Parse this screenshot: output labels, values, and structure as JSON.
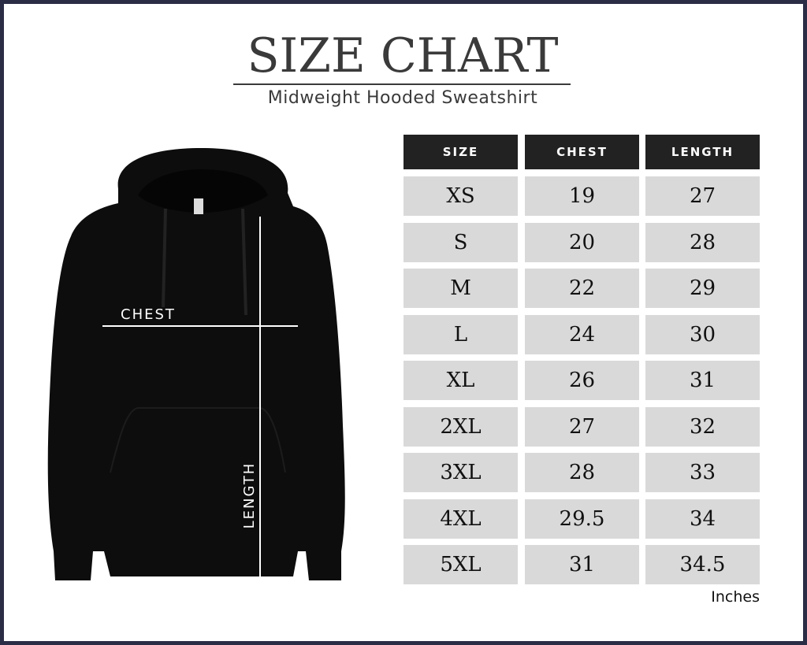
{
  "title": "SIZE CHART",
  "subtitle": "Midweight Hooded Sweatshirt",
  "table": {
    "headers": [
      "SIZE",
      "CHEST",
      "LENGTH"
    ],
    "rows": [
      [
        "XS",
        "19",
        "27"
      ],
      [
        "S",
        "20",
        "28"
      ],
      [
        "M",
        "22",
        "29"
      ],
      [
        "L",
        "24",
        "30"
      ],
      [
        "XL",
        "26",
        "31"
      ],
      [
        "2XL",
        "27",
        "32"
      ],
      [
        "3XL",
        "28",
        "33"
      ],
      [
        "4XL",
        "29.5",
        "34"
      ],
      [
        "5XL",
        "31",
        "34.5"
      ]
    ]
  },
  "unit": "Inches",
  "diagram": {
    "chest_label": "CHEST",
    "length_label": "LENGTH"
  },
  "colors": {
    "border": "#2a2d45",
    "header_bg": "#222222",
    "row_bg": "#d9d9d9",
    "garment": "#0d0d0d"
  }
}
